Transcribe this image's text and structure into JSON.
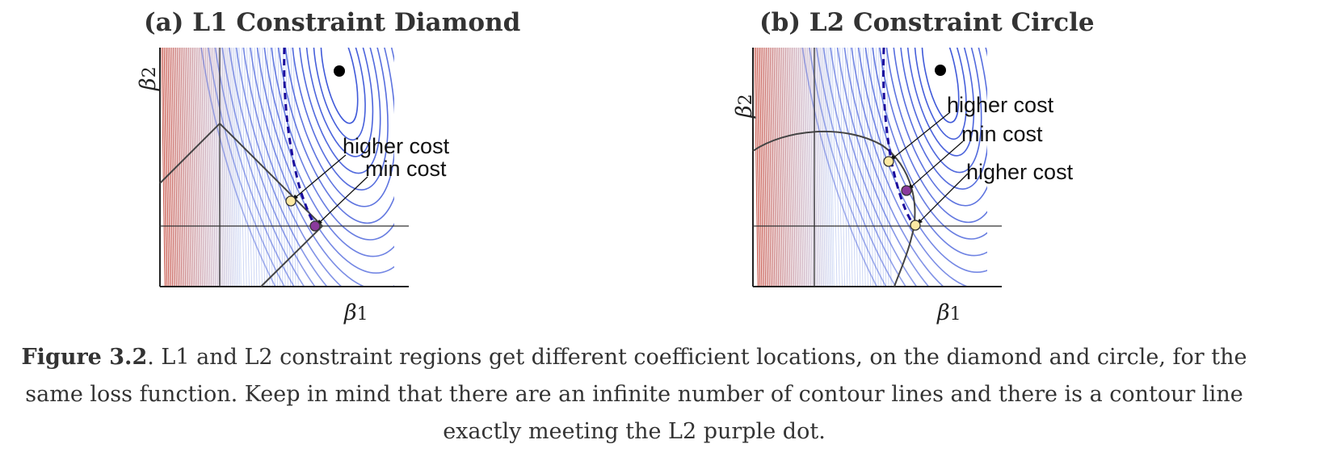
{
  "panels": {
    "a": {
      "title": "(a) L1 Constraint Diamond",
      "xlabel": "β",
      "xlabel_sub": "1",
      "ylabel": "β",
      "ylabel_sub": "2",
      "constraint": "diamond",
      "annotations": {
        "upper": "higher cost",
        "lower": "min cost"
      }
    },
    "b": {
      "title": "(b) L2 Constraint Circle",
      "xlabel": "β",
      "xlabel_sub": "1",
      "ylabel": "β",
      "ylabel_sub": "2",
      "constraint": "circle",
      "annotations": {
        "top": "higher cost",
        "middle": "min cost",
        "bottom": "higher cost"
      }
    }
  },
  "caption": {
    "label": "Figure 3.2",
    "text": ". L1 and L2 constraint regions get different coefficient locations, on the diamond and circle, for the same loss function. Keep in mind that there are an infinite number of contour lines and there is a contour line exactly meeting the L2 purple dot."
  },
  "colors": {
    "contour": "#3a55d8",
    "dashed": "#1a0a9c",
    "purple_dot": "#8a3a9c",
    "yellow_dot": "#fde9a3",
    "heat_hot": "#c0392b"
  }
}
